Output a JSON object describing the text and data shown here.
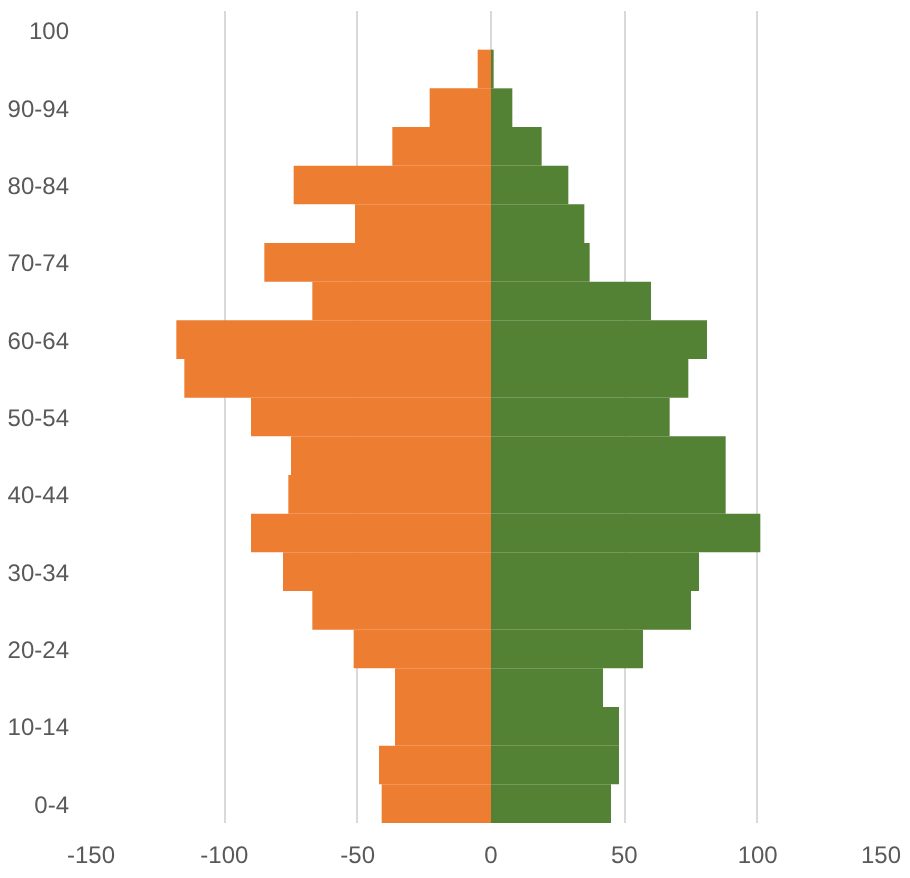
{
  "chart_data": {
    "type": "bar",
    "orientation": "horizontal",
    "categories": [
      "100",
      null,
      "90-94",
      null,
      "80-84",
      null,
      "70-74",
      null,
      "60-64",
      null,
      "50-54",
      null,
      "40-44",
      null,
      "30-34",
      null,
      "20-24",
      null,
      "10-14",
      null,
      "0-4"
    ],
    "series": [
      {
        "color": "#ed7d31",
        "values": [
          0,
          -5,
          -23,
          -37,
          -74,
          -51,
          -85,
          -67,
          -118,
          -115,
          -90,
          -75,
          -76,
          -90,
          -78,
          -67,
          -51.5,
          -36,
          -36,
          -42,
          -41
        ]
      },
      {
        "color": "#548235",
        "values": [
          0,
          1,
          8,
          19,
          29,
          35,
          37,
          60,
          81,
          74,
          67,
          88,
          88,
          101,
          78,
          75,
          57,
          42,
          48,
          48,
          45
        ]
      }
    ],
    "xlim": [
      -150,
      150
    ],
    "xticks": [
      -150,
      -100,
      -50,
      0,
      50,
      100,
      150
    ],
    "grid": "x",
    "stacked": true
  }
}
